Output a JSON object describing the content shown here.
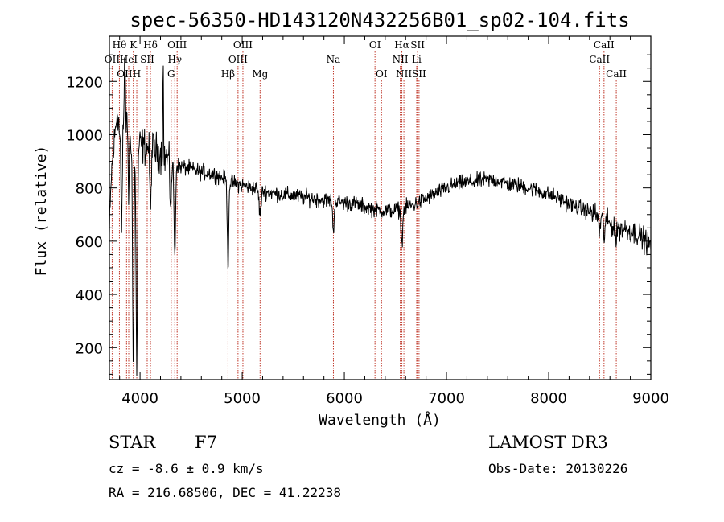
{
  "chart_data": {
    "type": "line",
    "title": "spec-56350-HD143120N432256B01_sp02-104.fits",
    "xlabel": "Wavelength (Å)",
    "ylabel": "Flux (relative)",
    "xlim": [
      3700,
      9000
    ],
    "ylim": [
      80,
      1370
    ],
    "xticks": [
      4000,
      5000,
      6000,
      7000,
      8000,
      9000
    ],
    "yticks": [
      200,
      400,
      600,
      800,
      1000,
      1200
    ],
    "continuum": [
      [
        3700,
        620
      ],
      [
        3720,
        850
      ],
      [
        3750,
        980
      ],
      [
        3780,
        1100
      ],
      [
        3800,
        1000
      ],
      [
        3850,
        1080
      ],
      [
        3900,
        1000
      ],
      [
        3950,
        980
      ],
      [
        4000,
        960
      ],
      [
        4100,
        950
      ],
      [
        4200,
        930
      ],
      [
        4300,
        900
      ],
      [
        4400,
        880
      ],
      [
        4500,
        870
      ],
      [
        4600,
        860
      ],
      [
        4700,
        855
      ],
      [
        4800,
        840
      ],
      [
        4900,
        820
      ],
      [
        5000,
        810
      ],
      [
        5100,
        800
      ],
      [
        5200,
        790
      ],
      [
        5300,
        780
      ],
      [
        5400,
        775
      ],
      [
        5500,
        770
      ],
      [
        5600,
        765
      ],
      [
        5700,
        760
      ],
      [
        5800,
        755
      ],
      [
        5900,
        750
      ],
      [
        6000,
        745
      ],
      [
        6100,
        740
      ],
      [
        6200,
        730
      ],
      [
        6300,
        720
      ],
      [
        6400,
        715
      ],
      [
        6500,
        715
      ],
      [
        6600,
        725
      ],
      [
        6700,
        740
      ],
      [
        6800,
        760
      ],
      [
        6900,
        780
      ],
      [
        7000,
        800
      ],
      [
        7100,
        815
      ],
      [
        7200,
        820
      ],
      [
        7300,
        825
      ],
      [
        7400,
        830
      ],
      [
        7500,
        830
      ],
      [
        7600,
        815
      ],
      [
        7700,
        810
      ],
      [
        7800,
        800
      ],
      [
        7900,
        790
      ],
      [
        8000,
        775
      ],
      [
        8100,
        760
      ],
      [
        8200,
        740
      ],
      [
        8300,
        725
      ],
      [
        8400,
        710
      ],
      [
        8500,
        690
      ],
      [
        8600,
        665
      ],
      [
        8700,
        650
      ],
      [
        8800,
        640
      ],
      [
        8900,
        620
      ],
      [
        9000,
        580
      ]
    ],
    "absorption_features": [
      [
        3820,
        420,
        6
      ],
      [
        3889,
        250,
        5
      ],
      [
        3934,
        880,
        7
      ],
      [
        3968,
        860,
        7
      ],
      [
        4102,
        260,
        6
      ],
      [
        4226,
        120,
        5
      ],
      [
        4300,
        160,
        8
      ],
      [
        4340,
        360,
        7
      ],
      [
        4861,
        320,
        7
      ],
      [
        5175,
        90,
        10
      ],
      [
        5893,
        130,
        6
      ],
      [
        6563,
        130,
        8
      ],
      [
        8498,
        60,
        6
      ],
      [
        8542,
        70,
        6
      ],
      [
        8662,
        60,
        6
      ]
    ],
    "emission_features": [
      [
        4226,
        560,
        3
      ],
      [
        3850,
        230,
        4
      ]
    ],
    "line_markers": [
      {
        "label": "Hθ",
        "wavelength": 3798,
        "row": 1
      },
      {
        "label": "K",
        "wavelength": 3934,
        "row": 1
      },
      {
        "label": "Hδ",
        "wavelength": 4102,
        "row": 1
      },
      {
        "label": "OIII",
        "wavelength": 4363,
        "row": 1
      },
      {
        "label": "OIII",
        "wavelength": 5007,
        "row": 1
      },
      {
        "label": "OI",
        "wavelength": 6300,
        "row": 1
      },
      {
        "label": "Hα",
        "wavelength": 6563,
        "row": 1
      },
      {
        "label": "SII",
        "wavelength": 6717,
        "row": 1
      },
      {
        "label": "CaII",
        "wavelength": 8542,
        "row": 1
      },
      {
        "label": "OII",
        "wavelength": 3727,
        "row": 2
      },
      {
        "label": "HeI",
        "wavelength": 3889,
        "row": 2
      },
      {
        "label": "SII",
        "wavelength": 4070,
        "row": 2
      },
      {
        "label": "Hγ",
        "wavelength": 4340,
        "row": 2
      },
      {
        "label": "OIII",
        "wavelength": 4959,
        "row": 2
      },
      {
        "label": "Na",
        "wavelength": 5893,
        "row": 2
      },
      {
        "label": "NII",
        "wavelength": 6548,
        "row": 2
      },
      {
        "label": "Li",
        "wavelength": 6708,
        "row": 2
      },
      {
        "label": "CaII",
        "wavelength": 8498,
        "row": 2
      },
      {
        "label": "OIII",
        "wavelength": 3868,
        "row": 3
      },
      {
        "label": "H",
        "wavelength": 3968,
        "row": 3
      },
      {
        "label": "G",
        "wavelength": 4305,
        "row": 3
      },
      {
        "label": "Hβ",
        "wavelength": 4861,
        "row": 3
      },
      {
        "label": "Mg",
        "wavelength": 5175,
        "row": 3
      },
      {
        "label": "OI",
        "wavelength": 6364,
        "row": 3
      },
      {
        "label": "NII",
        "wavelength": 6583,
        "row": 3
      },
      {
        "label": "SII",
        "wavelength": 6731,
        "row": 3
      },
      {
        "label": "CaII",
        "wavelength": 8662,
        "row": 3
      }
    ],
    "marker_color": "#c0392b"
  },
  "info": {
    "class_label": "STAR",
    "subclass": "F7",
    "survey": "LAMOST DR3",
    "cz": "cz = -8.6 ± 0.9 km/s",
    "obs_date": "Obs-Date: 20130226",
    "coords": "RA = 216.68506, DEC =  41.22238"
  }
}
